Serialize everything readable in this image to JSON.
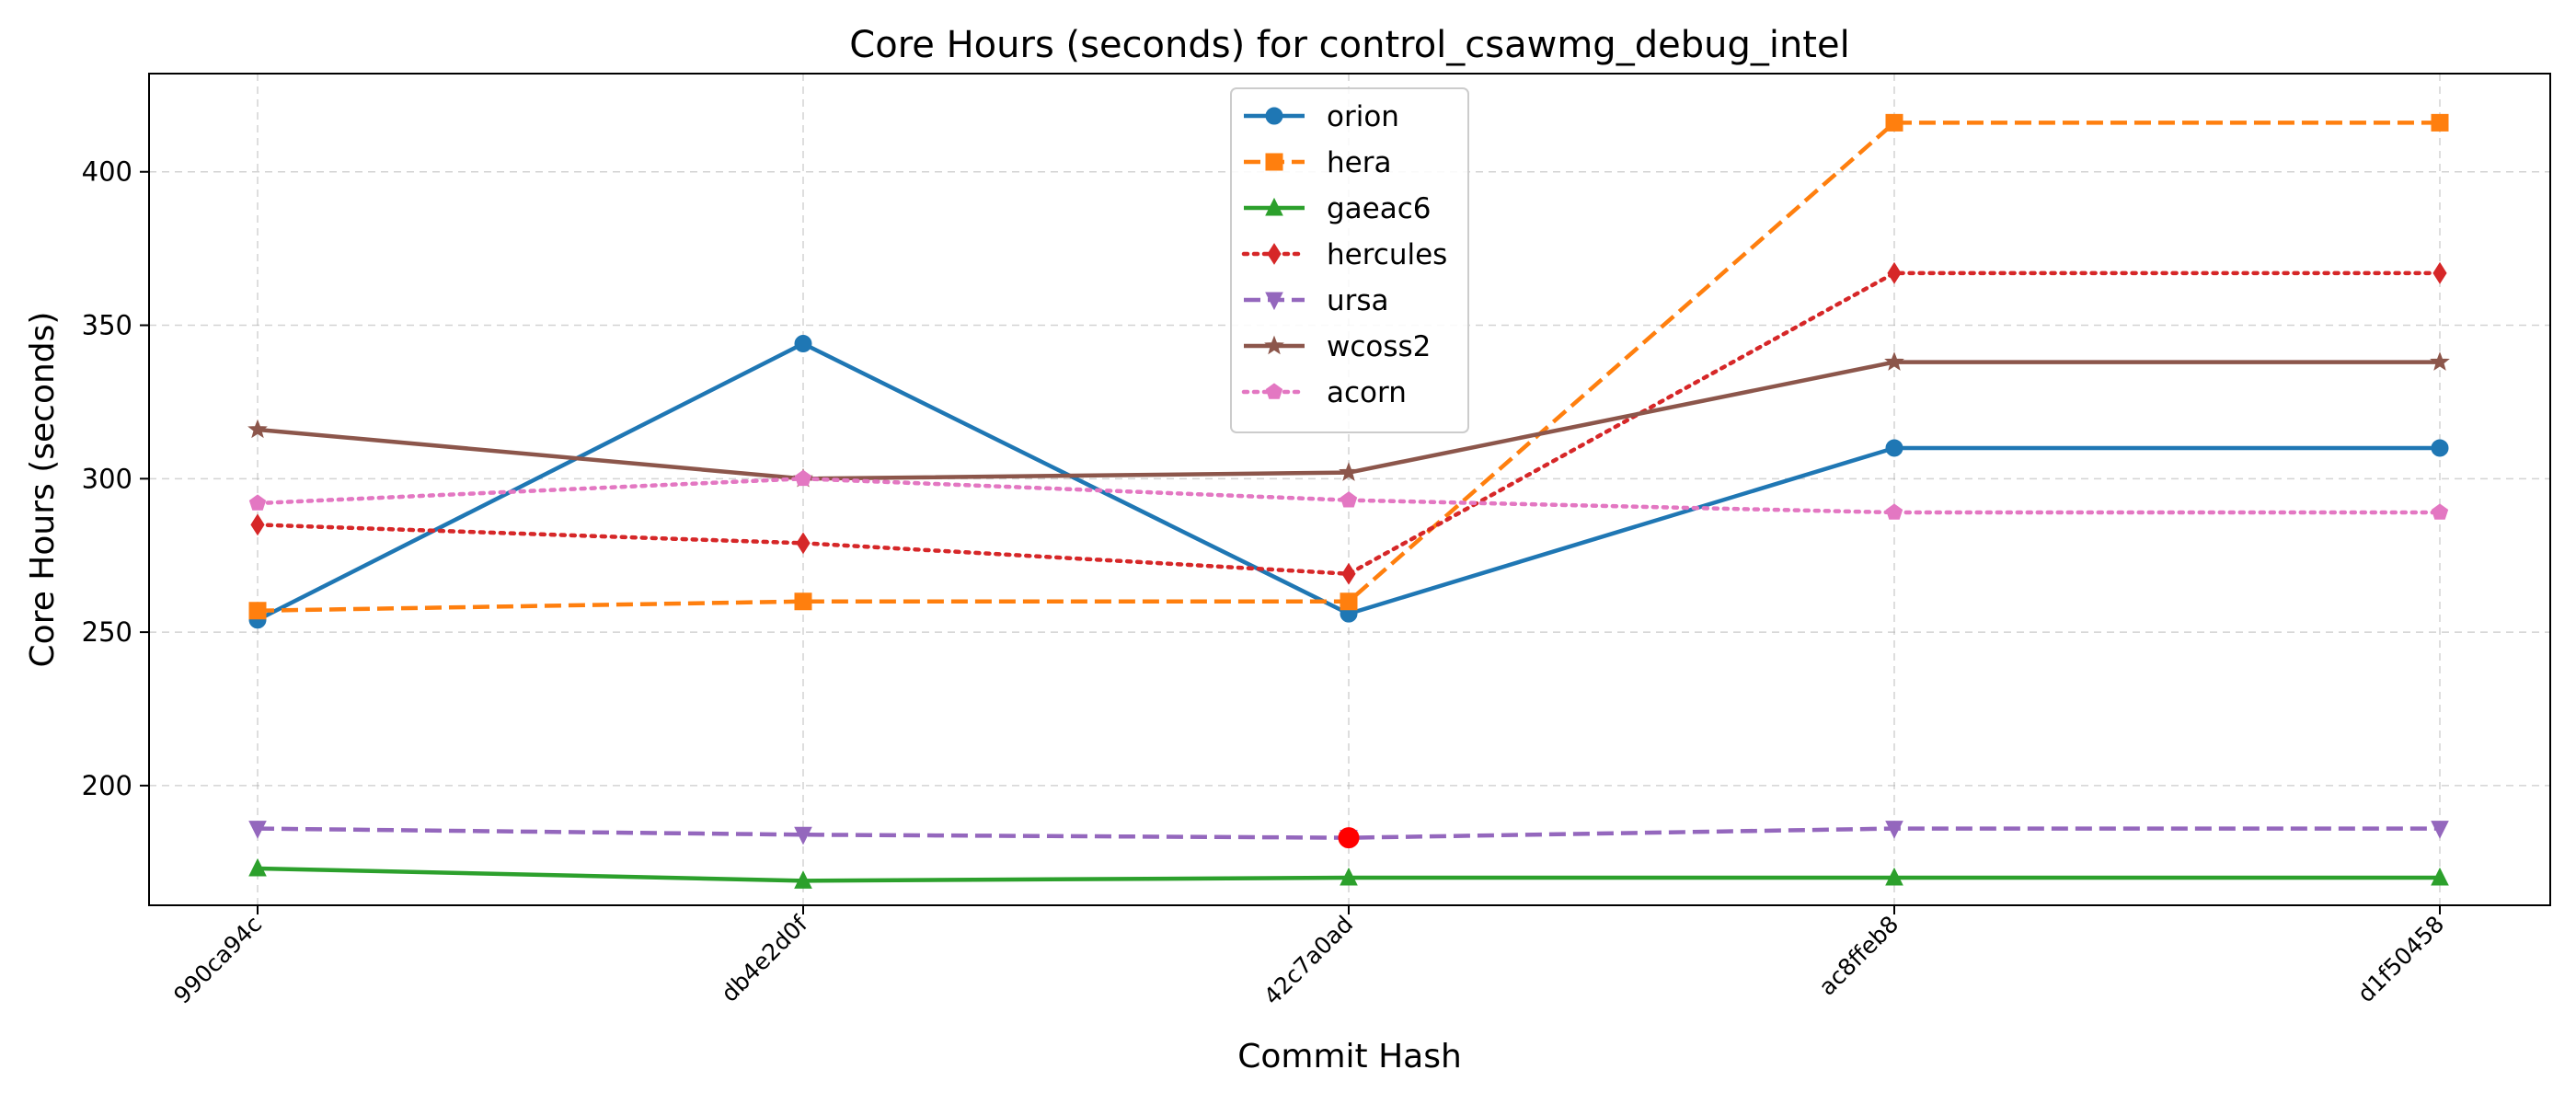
{
  "chart_data": {
    "type": "line",
    "title": "Core Hours (seconds) for control_csawmg_debug_intel",
    "xlabel": "Commit Hash",
    "ylabel": "Core Hours (seconds)",
    "categories": [
      "990ca94c",
      "db4e2d0f",
      "42c7a0ad",
      "ac8ffeb8",
      "d1f50458"
    ],
    "ylim": [
      161,
      432
    ],
    "yticks": [
      200,
      250,
      300,
      350,
      400
    ],
    "grid": true,
    "legend_position": "top-center",
    "series": [
      {
        "name": "orion",
        "values": [
          254,
          344,
          256,
          310,
          310
        ],
        "color": "#1f77b4",
        "dash": "solid",
        "marker": "circle"
      },
      {
        "name": "hera",
        "values": [
          257,
          260,
          260,
          416,
          416
        ],
        "color": "#ff7f0e",
        "dash": "dashed",
        "marker": "square"
      },
      {
        "name": "gaeac6",
        "values": [
          173,
          169,
          170,
          170,
          170
        ],
        "color": "#2ca02c",
        "dash": "solid",
        "marker": "triangle-up"
      },
      {
        "name": "hercules",
        "values": [
          285,
          279,
          269,
          367,
          367
        ],
        "color": "#d62728",
        "dash": "dotted",
        "marker": "diamond"
      },
      {
        "name": "ursa",
        "values": [
          186,
          184,
          183,
          186,
          186
        ],
        "color": "#9467bd",
        "dash": "dashed",
        "marker": "triangle-down"
      },
      {
        "name": "wcoss2",
        "values": [
          316,
          300,
          302,
          338,
          338
        ],
        "color": "#8c564b",
        "dash": "solid",
        "marker": "star"
      },
      {
        "name": "acorn",
        "values": [
          292,
          300,
          293,
          289,
          289
        ],
        "color": "#e377c2",
        "dash": "dotted",
        "marker": "pentagon"
      }
    ],
    "highlight_point": {
      "category": "42c7a0ad",
      "value": 183,
      "color": "#ff0000"
    }
  }
}
